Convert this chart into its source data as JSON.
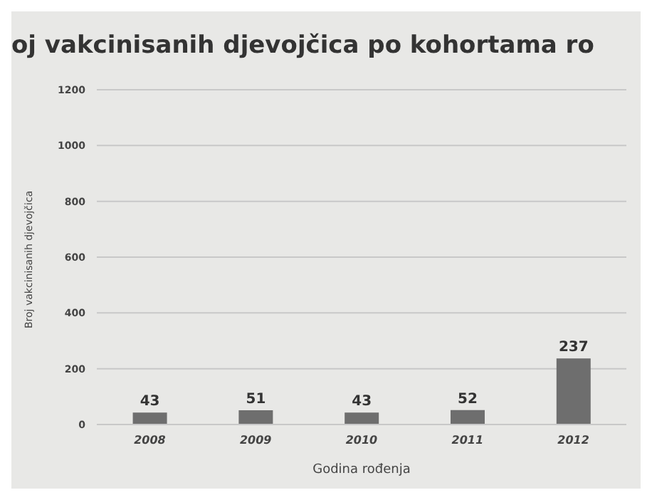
{
  "chart_data": {
    "type": "bar",
    "title": "oj vakcinisanih djevojčica po kohortama ro",
    "xlabel": "Godina rođenja",
    "ylabel": "Broj vakcinisanih djevojčica",
    "categories": [
      "2008",
      "2009",
      "2010",
      "2011",
      "2012"
    ],
    "values": [
      43,
      51,
      43,
      52,
      237
    ],
    "color": "#6e6e6e",
    "ylim": [
      0,
      1200
    ],
    "yticks": [
      0,
      200,
      400,
      600,
      800,
      1000,
      1200
    ],
    "grid": "y",
    "data_labels": true
  }
}
